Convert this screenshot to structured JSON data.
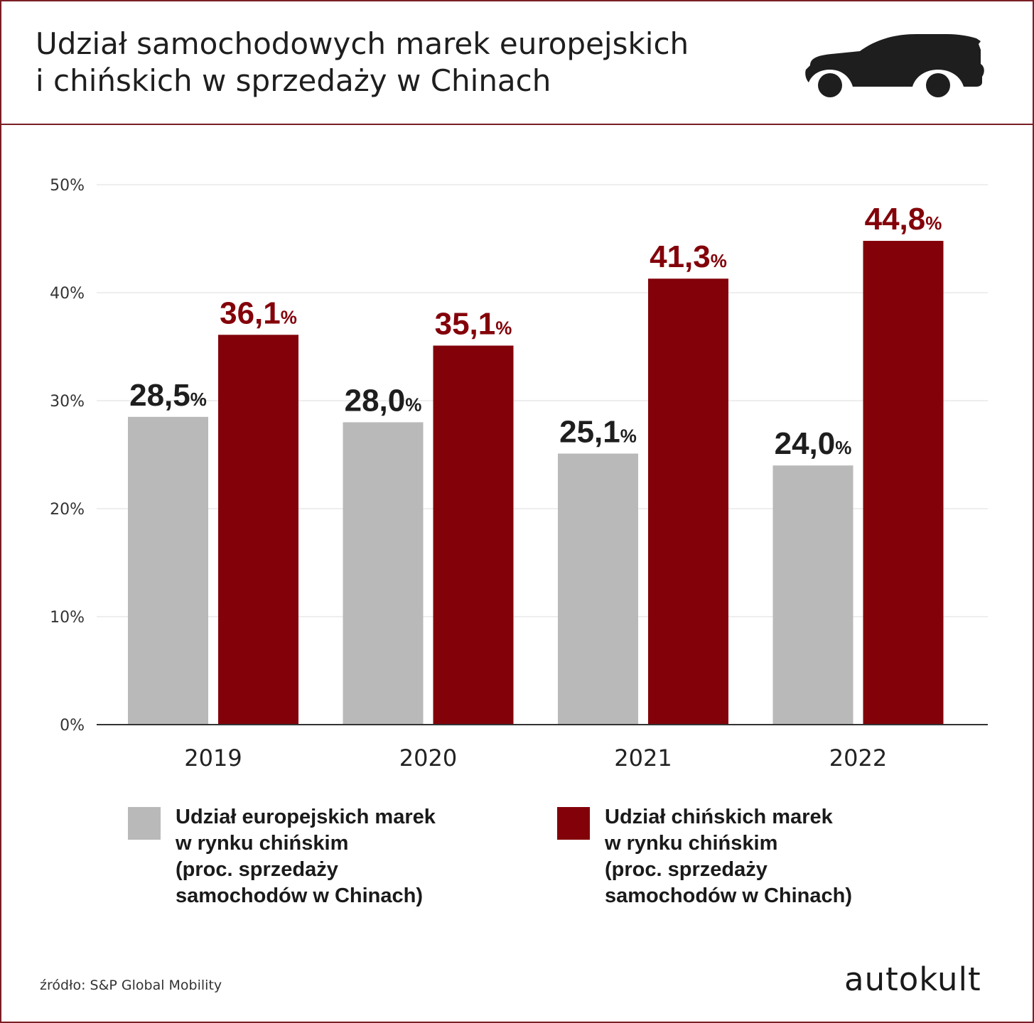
{
  "header": {
    "title_line1": "Udział samochodowych marek europejskich",
    "title_line2": "i chińskich w sprzedaży w Chinach",
    "icon": "car-icon"
  },
  "chart_data": {
    "type": "bar",
    "categories": [
      "2019",
      "2020",
      "2021",
      "2022"
    ],
    "series": [
      {
        "name": "Udział europejskich marek\nw rynku chińskim\n(proc. sprzedaży\nsamochodów w Chinach)",
        "values": [
          28.5,
          28.0,
          25.1,
          24.0
        ],
        "labels": [
          "28,5",
          "28,0",
          "25,1",
          "24,0"
        ],
        "color": "#b9b9b9",
        "label_color": "#1e1e1e"
      },
      {
        "name": "Udział chińskich marek\nw rynku chińskim\n(proc. sprzedaży\nsamochodów w Chinach)",
        "values": [
          36.1,
          35.1,
          41.3,
          44.8
        ],
        "labels": [
          "36,1",
          "35,1",
          "41,3",
          "44,8"
        ],
        "color": "#83020a",
        "label_color": "#83020a"
      }
    ],
    "value_suffix": "%",
    "yticks": [
      "0%",
      "10%",
      "20%",
      "30%",
      "40%",
      "50%"
    ],
    "ylim": [
      0,
      50
    ],
    "grid": true,
    "legend_position": "bottom"
  },
  "footer": {
    "source": "źródło: S&P Global Mobility",
    "logo": "autokult"
  }
}
